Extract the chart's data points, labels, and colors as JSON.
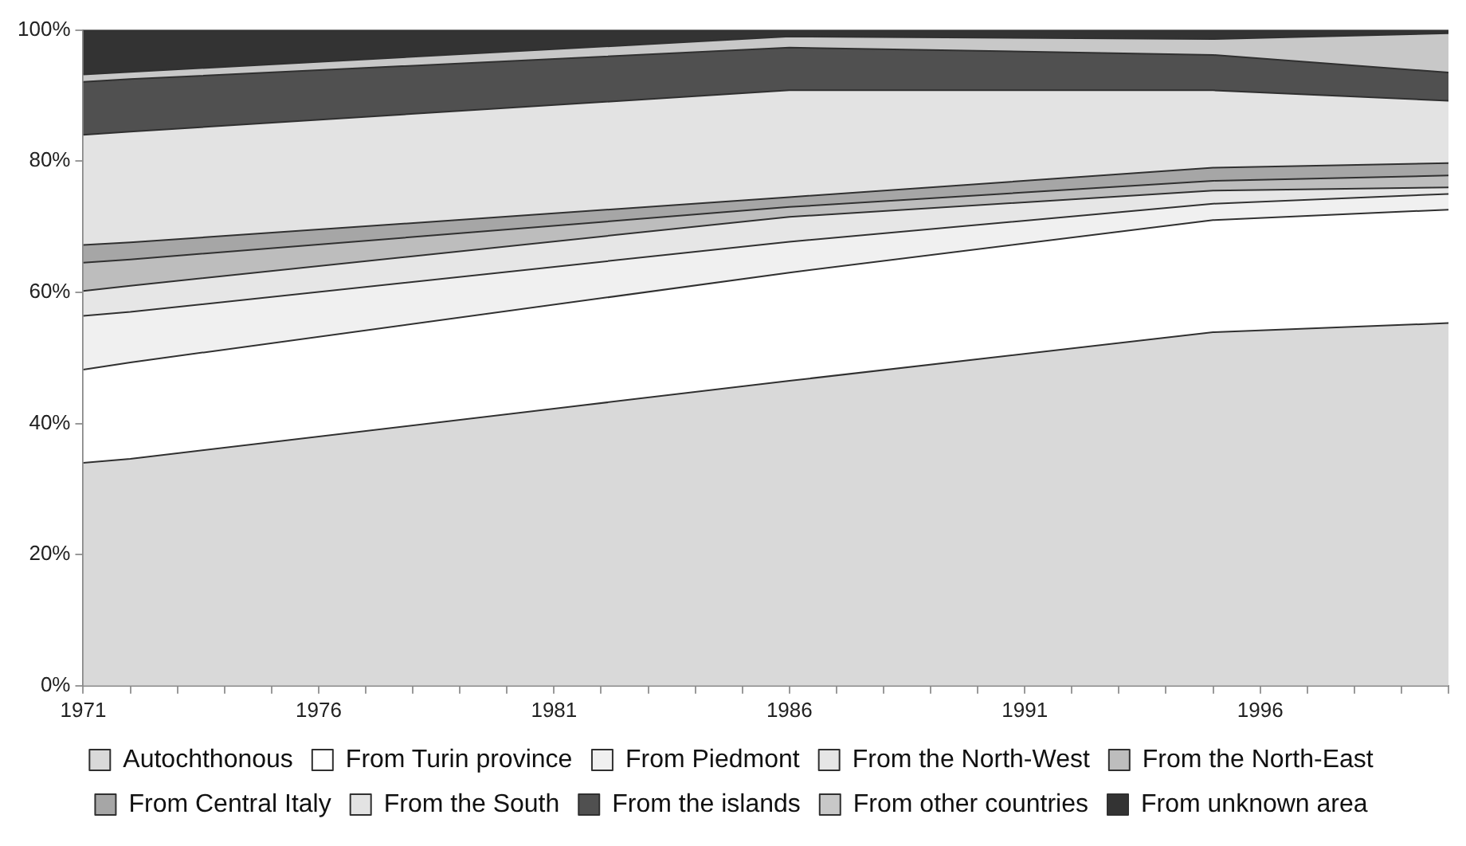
{
  "chart_data": {
    "type": "area",
    "stacked": true,
    "x": [
      1971,
      1972,
      1986,
      1995,
      2000
    ],
    "xlim": [
      1971,
      2000
    ],
    "xticks": [
      1971,
      {
        "value": 1972,
        "label": null
      },
      {
        "value": 1973,
        "label": null
      },
      {
        "value": 1974,
        "label": null
      },
      {
        "value": 1975,
        "label": null
      },
      1976,
      {
        "value": 1977,
        "label": null
      },
      {
        "value": 1978,
        "label": null
      },
      {
        "value": 1979,
        "label": null
      },
      {
        "value": 1980,
        "label": null
      },
      1981,
      {
        "value": 1982,
        "label": null
      },
      {
        "value": 1983,
        "label": null
      },
      {
        "value": 1984,
        "label": null
      },
      {
        "value": 1985,
        "label": null
      },
      1986,
      {
        "value": 1987,
        "label": null
      },
      {
        "value": 1988,
        "label": null
      },
      {
        "value": 1989,
        "label": null
      },
      {
        "value": 1990,
        "label": null
      },
      1991,
      {
        "value": 1992,
        "label": null
      },
      {
        "value": 1993,
        "label": null
      },
      {
        "value": 1994,
        "label": null
      },
      {
        "value": 1995,
        "label": null
      },
      1996,
      {
        "value": 1997,
        "label": null
      },
      {
        "value": 1998,
        "label": null
      },
      {
        "value": 1999,
        "label": null
      },
      {
        "value": 2000,
        "label": null
      }
    ],
    "ylim": [
      0,
      100
    ],
    "yticks": [
      {
        "value": 0,
        "label": "0%"
      },
      {
        "value": 20,
        "label": "20%"
      },
      {
        "value": 40,
        "label": "40%"
      },
      {
        "value": 60,
        "label": "60%"
      },
      {
        "value": 80,
        "label": "80%"
      },
      {
        "value": 100,
        "label": "100%"
      }
    ],
    "grid": false,
    "legend": "bottom",
    "series": [
      {
        "name": "Autochthonous",
        "color": "#d9d9d9",
        "values": [
          34,
          34.6,
          46.5,
          53.9,
          55.3
        ]
      },
      {
        "name": "From Turin province",
        "color": "#ffffff",
        "values": [
          14.2,
          14.7,
          16.5,
          17.1,
          17.3
        ]
      },
      {
        "name": "From Piedmont",
        "color": "#f0f0f0",
        "values": [
          8.2,
          7.7,
          4.7,
          2.5,
          2.4
        ]
      },
      {
        "name": "From the North-West",
        "color": "#e6e6e6",
        "values": [
          3.8,
          4,
          3.8,
          2,
          1
        ]
      },
      {
        "name": "From the North-East",
        "color": "#bdbdbd",
        "values": [
          4.3,
          4,
          1.5,
          1.5,
          1.8
        ]
      },
      {
        "name": "From Central Italy",
        "color": "#a6a6a6",
        "values": [
          2.7,
          2.6,
          1.5,
          2,
          1.9
        ]
      },
      {
        "name": "From the South",
        "color": "#e3e3e3",
        "values": [
          16.8,
          16.9,
          16.3,
          11.8,
          9.5
        ]
      },
      {
        "name": "From the islands",
        "color": "#505050",
        "values": [
          8.1,
          8,
          6.5,
          5.4,
          4.3
        ]
      },
      {
        "name": "From other countries",
        "color": "#c8c8c8",
        "values": [
          1.1,
          1.1,
          1.7,
          2.4,
          6
        ]
      },
      {
        "name": "From unknown area",
        "color": "#333333",
        "values": [
          6.8,
          6.4,
          1,
          1.4,
          0.5
        ]
      }
    ]
  }
}
